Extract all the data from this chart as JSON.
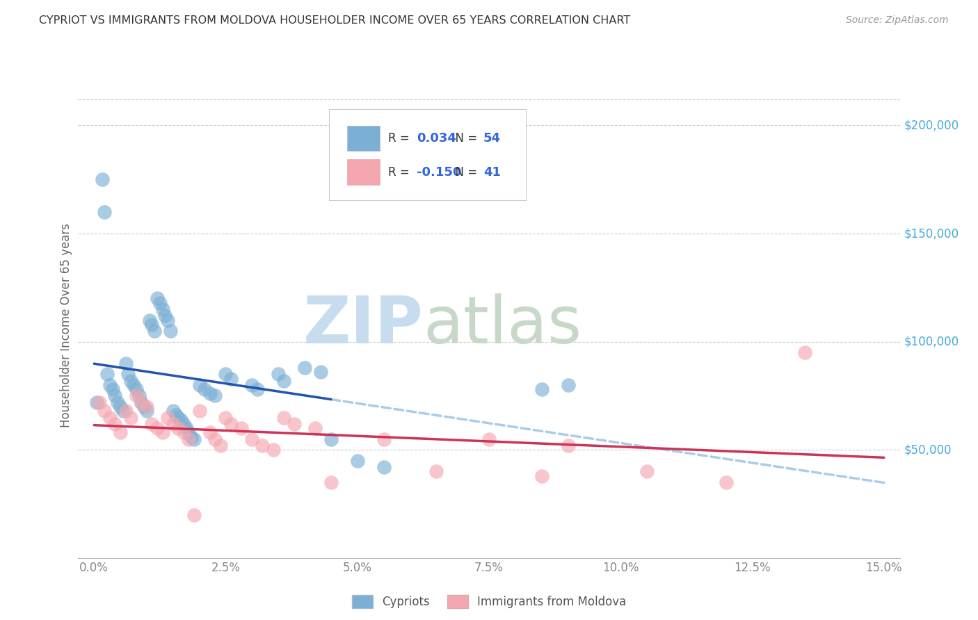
{
  "title": "CYPRIOT VS IMMIGRANTS FROM MOLDOVA HOUSEHOLDER INCOME OVER 65 YEARS CORRELATION CHART",
  "source": "Source: ZipAtlas.com",
  "ylabel": "Householder Income Over 65 years",
  "xlabel_ticks": [
    "0.0%",
    "2.5%",
    "5.0%",
    "7.5%",
    "10.0%",
    "12.5%",
    "15.0%"
  ],
  "xlim": [
    0.0,
    15.0
  ],
  "ylim": [
    0,
    215000
  ],
  "ytick_labels": [
    "$50,000",
    "$100,000",
    "$150,000",
    "$200,000"
  ],
  "ytick_vals": [
    50000,
    100000,
    150000,
    200000
  ],
  "legend_label1": "Cypriots",
  "legend_label2": "Immigrants from Moldova",
  "r1": "0.034",
  "n1": "54",
  "r2": "-0.150",
  "n2": "41",
  "blue_color": "#7BAFD4",
  "pink_color": "#F4A7B0",
  "blue_line_color": "#2255AA",
  "pink_line_color": "#CC3355",
  "blue_dashed_color": "#AACCE8",
  "cypriot_x": [
    0.05,
    0.15,
    0.2,
    0.25,
    0.3,
    0.35,
    0.4,
    0.45,
    0.5,
    0.55,
    0.6,
    0.65,
    0.7,
    0.75,
    0.8,
    0.85,
    0.9,
    0.95,
    1.0,
    1.05,
    1.1,
    1.15,
    1.2,
    1.25,
    1.3,
    1.35,
    1.4,
    1.45,
    1.5,
    1.55,
    1.6,
    1.65,
    1.7,
    1.75,
    1.8,
    1.85,
    1.9,
    2.0,
    2.1,
    2.2,
    2.3,
    2.5,
    2.6,
    3.0,
    3.1,
    3.5,
    3.6,
    4.0,
    4.3,
    4.5,
    5.0,
    5.5,
    8.5,
    9.0
  ],
  "cypriot_y": [
    72000,
    175000,
    160000,
    85000,
    80000,
    78000,
    75000,
    72000,
    70000,
    68000,
    90000,
    85000,
    82000,
    80000,
    78000,
    75000,
    72000,
    70000,
    68000,
    110000,
    108000,
    105000,
    120000,
    118000,
    115000,
    112000,
    110000,
    105000,
    68000,
    66000,
    65000,
    64000,
    62000,
    60000,
    58000,
    56000,
    55000,
    80000,
    78000,
    76000,
    75000,
    85000,
    83000,
    80000,
    78000,
    85000,
    82000,
    88000,
    86000,
    55000,
    45000,
    42000,
    78000,
    80000
  ],
  "moldova_x": [
    0.1,
    0.2,
    0.3,
    0.4,
    0.5,
    0.6,
    0.7,
    0.8,
    0.9,
    1.0,
    1.1,
    1.2,
    1.3,
    1.4,
    1.5,
    1.6,
    1.7,
    1.8,
    1.9,
    2.0,
    2.2,
    2.3,
    2.4,
    2.5,
    2.6,
    2.8,
    3.0,
    3.2,
    3.4,
    3.6,
    3.8,
    4.2,
    4.5,
    5.5,
    6.5,
    7.5,
    8.5,
    9.0,
    10.5,
    12.0,
    13.5
  ],
  "moldova_y": [
    72000,
    68000,
    65000,
    62000,
    58000,
    68000,
    65000,
    75000,
    72000,
    70000,
    62000,
    60000,
    58000,
    65000,
    62000,
    60000,
    58000,
    55000,
    20000,
    68000,
    58000,
    55000,
    52000,
    65000,
    62000,
    60000,
    55000,
    52000,
    50000,
    65000,
    62000,
    60000,
    35000,
    55000,
    40000,
    55000,
    38000,
    52000,
    40000,
    35000,
    95000
  ]
}
